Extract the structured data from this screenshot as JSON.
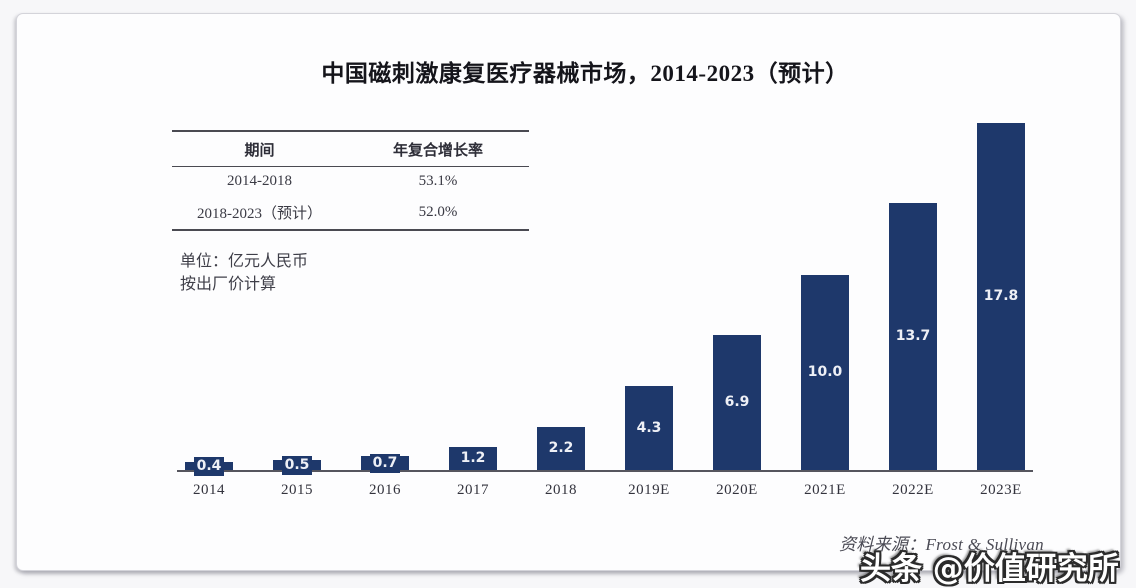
{
  "title": "中国磁刺激康复医疗器械市场，2014-2023（预计）",
  "cagr_table": {
    "headers": [
      "期间",
      "年复合增长率"
    ],
    "rows": [
      {
        "period": "2014-2018",
        "cagr": "53.1%"
      },
      {
        "period": "2018-2023（预计）",
        "cagr": "52.0%"
      }
    ]
  },
  "unit_note": {
    "line1": "单位：亿元人民币",
    "line2": "按出厂价计算"
  },
  "source_note": "资料来源：Frost & Sullivan",
  "watermark": "头条 @价值研究所",
  "colors": {
    "bar": "#1e386b",
    "axis": "#55555e",
    "bar_label_text": "#eef0f6"
  },
  "chart_data": {
    "type": "bar",
    "title": "中国磁刺激康复医疗器械市场，2014-2023（预计）",
    "categories": [
      "2014",
      "2015",
      "2016",
      "2017",
      "2018",
      "2019E",
      "2020E",
      "2021E",
      "2022E",
      "2023E"
    ],
    "values": [
      0.4,
      0.5,
      0.7,
      1.2,
      2.2,
      4.3,
      6.9,
      10.0,
      13.7,
      17.8
    ],
    "xlabel": "",
    "ylabel": "亿元人民币",
    "ylim": [
      0,
      18
    ],
    "grid": false,
    "legend": false,
    "value_labels": "inside-center, white on bar color"
  }
}
